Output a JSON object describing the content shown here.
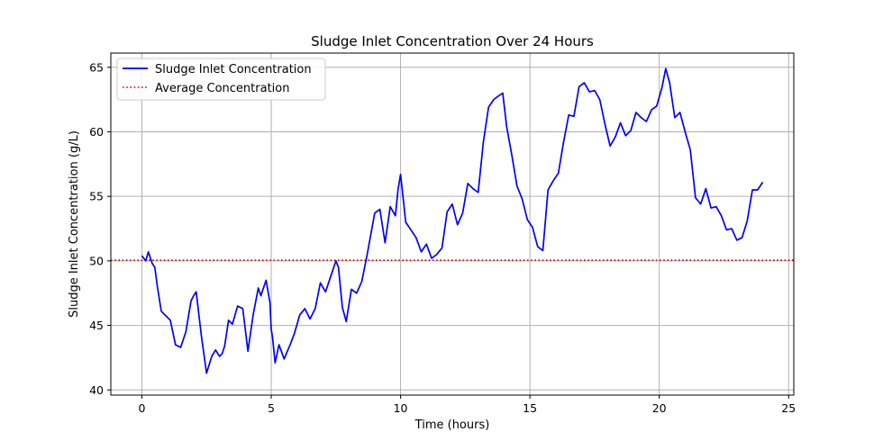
{
  "chart_data": {
    "type": "line",
    "title": "Sludge Inlet Concentration Over 24 Hours",
    "xlabel": "Time (hours)",
    "ylabel": "Sludge Inlet Concentration (g/L)",
    "xlim": [
      -1.2,
      25.2
    ],
    "ylim": [
      39.6,
      66.1
    ],
    "xticks": [
      0,
      5,
      10,
      15,
      20,
      25
    ],
    "yticks": [
      40,
      45,
      50,
      55,
      60,
      65
    ],
    "grid": true,
    "legend": {
      "location": "upper left",
      "entries": [
        "Sludge Inlet Concentration",
        "Average Concentration"
      ]
    },
    "colors": {
      "series": "#0000ff",
      "average": "#cc0000",
      "grid": "#b0b0b0"
    },
    "series": [
      {
        "name": "Sludge Inlet Concentration",
        "style": "solid",
        "x": [
          0,
          0.15,
          0.25,
          0.4,
          0.5,
          0.6,
          0.75,
          0.9,
          1.1,
          1.3,
          1.5,
          1.7,
          1.9,
          2.0,
          2.1,
          2.3,
          2.5,
          2.7,
          2.85,
          3.0,
          3.1,
          3.2,
          3.35,
          3.5,
          3.7,
          3.9,
          4.1,
          4.3,
          4.5,
          4.6,
          4.8,
          4.95,
          5.0,
          5.05,
          5.15,
          5.3,
          5.5,
          5.75,
          5.9,
          6.1,
          6.3,
          6.5,
          6.7,
          6.9,
          7.1,
          7.3,
          7.5,
          7.6,
          7.75,
          7.9,
          8.1,
          8.3,
          8.5,
          8.7,
          9.0,
          9.2,
          9.4,
          9.6,
          9.8,
          9.9,
          10.0,
          10.2,
          10.4,
          10.6,
          10.8,
          11.0,
          11.2,
          11.4,
          11.6,
          11.8,
          12.0,
          12.2,
          12.4,
          12.6,
          12.8,
          13.0,
          13.2,
          13.4,
          13.6,
          13.8,
          13.95,
          14.1,
          14.3,
          14.5,
          14.7,
          14.9,
          15.1,
          15.3,
          15.5,
          15.7,
          15.9,
          16.1,
          16.3,
          16.5,
          16.7,
          16.9,
          17.1,
          17.3,
          17.5,
          17.7,
          17.9,
          18.1,
          18.3,
          18.5,
          18.7,
          18.9,
          19.1,
          19.3,
          19.5,
          19.7,
          19.9,
          20.1,
          20.25,
          20.4,
          20.6,
          20.8,
          21.0,
          21.2,
          21.4,
          21.6,
          21.8,
          22.0,
          22.2,
          22.4,
          22.6,
          22.8,
          23.0,
          23.2,
          23.4,
          23.6,
          23.8,
          24.0
        ],
        "values": [
          50.4,
          50.0,
          50.7,
          49.8,
          49.5,
          48.0,
          46.1,
          45.8,
          45.4,
          43.5,
          43.3,
          44.5,
          46.9,
          47.3,
          47.6,
          44.2,
          41.3,
          42.6,
          43.1,
          42.6,
          42.8,
          43.4,
          45.4,
          45.1,
          46.5,
          46.3,
          43.0,
          45.8,
          47.9,
          47.3,
          48.5,
          46.8,
          44.7,
          44.1,
          42.1,
          43.5,
          42.4,
          43.6,
          44.4,
          45.8,
          46.3,
          45.5,
          46.3,
          48.3,
          47.6,
          48.8,
          50.0,
          49.5,
          46.4,
          45.3,
          47.8,
          47.5,
          48.4,
          50.4,
          53.7,
          54.0,
          51.4,
          54.2,
          53.5,
          55.5,
          56.7,
          53.0,
          52.4,
          51.8,
          50.7,
          51.3,
          50.2,
          50.5,
          51.0,
          53.8,
          54.4,
          52.8,
          53.7,
          56.0,
          55.6,
          55.3,
          59.2,
          61.9,
          62.5,
          62.8,
          63.0,
          60.4,
          58.2,
          55.8,
          54.8,
          53.2,
          52.6,
          51.1,
          50.8,
          55.5,
          56.2,
          56.8,
          59.2,
          61.3,
          61.2,
          63.5,
          63.8,
          63.1,
          63.2,
          62.5,
          60.6,
          58.9,
          59.6,
          60.7,
          59.7,
          60.1,
          61.5,
          61.1,
          60.8,
          61.7,
          62.0,
          63.4,
          64.9,
          63.8,
          61.1,
          61.5,
          60.0,
          58.6,
          54.9,
          54.4,
          55.6,
          54.1,
          54.2,
          53.5,
          52.4,
          52.5,
          51.6,
          51.8,
          53.1,
          55.5,
          55.5,
          56.1
        ]
      },
      {
        "name": "Average Concentration",
        "style": "dotted",
        "value": 50.05
      }
    ]
  }
}
